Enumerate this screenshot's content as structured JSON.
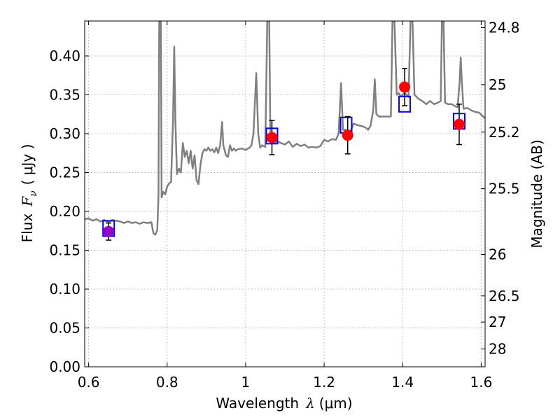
{
  "chart_data": {
    "type": "line",
    "xlabel": "Wavelength",
    "xlabel_symbol": "λ",
    "xlabel_unit": "(μm)",
    "ylabel": "Flux",
    "ylabel_symbol": "F",
    "ylabel_subscript": "ν",
    "ylabel_unit": "( μJy )",
    "y2label": "Magnitude (AB)",
    "xlim": [
      0.59,
      1.61
    ],
    "ylim": [
      0.0,
      0.445
    ],
    "grid": true,
    "x_ticks": [
      0.6,
      0.8,
      1.0,
      1.2,
      1.4,
      1.6
    ],
    "x_tick_labels": [
      "0.6",
      "0.8",
      "1",
      "1.2",
      "1.4",
      "1.6"
    ],
    "y_ticks": [
      0.0,
      0.05,
      0.1,
      0.15,
      0.2,
      0.25,
      0.3,
      0.35,
      0.4
    ],
    "y_tick_labels": [
      "0.00",
      "0.05",
      "0.10",
      "0.15",
      "0.20",
      "0.25",
      "0.30",
      "0.35",
      "0.40"
    ],
    "y2_ticks": [
      {
        "label": "24.8",
        "mag": 24.8
      },
      {
        "label": "25",
        "mag": 25.0
      },
      {
        "label": "25.2",
        "mag": 25.2
      },
      {
        "label": "25.5",
        "mag": 25.5
      },
      {
        "label": "26",
        "mag": 26.0
      },
      {
        "label": "26.5",
        "mag": 26.5
      },
      {
        "label": "27",
        "mag": 27.0
      },
      {
        "label": "28",
        "mag": 28.0
      }
    ],
    "colors": {
      "spectrum": "#808080",
      "observed": "#ff0000",
      "observed_first": "#9400c8",
      "model": "#0000ff",
      "errorbar": "#000000",
      "grid": "#b0b0b0"
    },
    "spectrum": [
      [
        0.59,
        0.19
      ],
      [
        0.6,
        0.191
      ],
      [
        0.61,
        0.188
      ],
      [
        0.62,
        0.19
      ],
      [
        0.63,
        0.187
      ],
      [
        0.64,
        0.189
      ],
      [
        0.65,
        0.186
      ],
      [
        0.66,
        0.189
      ],
      [
        0.67,
        0.188
      ],
      [
        0.68,
        0.187
      ],
      [
        0.69,
        0.185
      ],
      [
        0.7,
        0.187
      ],
      [
        0.71,
        0.185
      ],
      [
        0.72,
        0.186
      ],
      [
        0.73,
        0.184
      ],
      [
        0.74,
        0.186
      ],
      [
        0.75,
        0.185
      ],
      [
        0.76,
        0.186
      ],
      [
        0.765,
        0.172
      ],
      [
        0.77,
        0.17
      ],
      [
        0.775,
        0.176
      ],
      [
        0.778,
        0.22
      ],
      [
        0.78,
        0.445
      ],
      [
        0.784,
        0.445
      ],
      [
        0.786,
        0.218
      ],
      [
        0.79,
        0.225
      ],
      [
        0.795,
        0.222
      ],
      [
        0.8,
        0.232
      ],
      [
        0.805,
        0.236
      ],
      [
        0.81,
        0.238
      ],
      [
        0.815,
        0.318
      ],
      [
        0.818,
        0.412
      ],
      [
        0.821,
        0.318
      ],
      [
        0.825,
        0.248
      ],
      [
        0.83,
        0.255
      ],
      [
        0.835,
        0.25
      ],
      [
        0.84,
        0.288
      ],
      [
        0.845,
        0.27
      ],
      [
        0.85,
        0.278
      ],
      [
        0.855,
        0.262
      ],
      [
        0.86,
        0.278
      ],
      [
        0.865,
        0.255
      ],
      [
        0.87,
        0.272
      ],
      [
        0.875,
        0.24
      ],
      [
        0.88,
        0.235
      ],
      [
        0.885,
        0.26
      ],
      [
        0.89,
        0.275
      ],
      [
        0.895,
        0.28
      ],
      [
        0.9,
        0.278
      ],
      [
        0.905,
        0.282
      ],
      [
        0.91,
        0.278
      ],
      [
        0.915,
        0.28
      ],
      [
        0.92,
        0.276
      ],
      [
        0.925,
        0.282
      ],
      [
        0.93,
        0.275
      ],
      [
        0.935,
        0.285
      ],
      [
        0.94,
        0.315
      ],
      [
        0.943,
        0.285
      ],
      [
        0.95,
        0.272
      ],
      [
        0.955,
        0.27
      ],
      [
        0.96,
        0.285
      ],
      [
        0.965,
        0.278
      ],
      [
        0.97,
        0.281
      ],
      [
        0.975,
        0.278
      ],
      [
        0.98,
        0.28
      ],
      [
        0.99,
        0.281
      ],
      [
        1.0,
        0.279
      ],
      [
        1.01,
        0.282
      ],
      [
        1.015,
        0.285
      ],
      [
        1.02,
        0.3
      ],
      [
        1.027,
        0.378
      ],
      [
        1.032,
        0.3
      ],
      [
        1.037,
        0.282
      ],
      [
        1.042,
        0.285
      ],
      [
        1.05,
        0.283
      ],
      [
        1.055,
        0.445
      ],
      [
        1.06,
        0.445
      ],
      [
        1.063,
        0.292
      ],
      [
        1.07,
        0.288
      ],
      [
        1.08,
        0.29
      ],
      [
        1.09,
        0.288
      ],
      [
        1.1,
        0.286
      ],
      [
        1.11,
        0.29
      ],
      [
        1.12,
        0.283
      ],
      [
        1.13,
        0.287
      ],
      [
        1.14,
        0.284
      ],
      [
        1.15,
        0.286
      ],
      [
        1.16,
        0.282
      ],
      [
        1.17,
        0.283
      ],
      [
        1.18,
        0.282
      ],
      [
        1.19,
        0.284
      ],
      [
        1.2,
        0.292
      ],
      [
        1.21,
        0.29
      ],
      [
        1.22,
        0.293
      ],
      [
        1.23,
        0.292
      ],
      [
        1.237,
        0.3
      ],
      [
        1.243,
        0.365
      ],
      [
        1.248,
        0.305
      ],
      [
        1.255,
        0.305
      ],
      [
        1.265,
        0.3
      ],
      [
        1.275,
        0.313
      ],
      [
        1.285,
        0.311
      ],
      [
        1.295,
        0.31
      ],
      [
        1.305,
        0.308
      ],
      [
        1.312,
        0.305
      ],
      [
        1.318,
        0.31
      ],
      [
        1.325,
        0.33
      ],
      [
        1.329,
        0.37
      ],
      [
        1.333,
        0.325
      ],
      [
        1.34,
        0.322
      ],
      [
        1.35,
        0.322
      ],
      [
        1.36,
        0.322
      ],
      [
        1.37,
        0.322
      ],
      [
        1.374,
        0.445
      ],
      [
        1.379,
        0.445
      ],
      [
        1.385,
        0.35
      ],
      [
        1.39,
        0.352
      ],
      [
        1.395,
        0.348
      ],
      [
        1.4,
        0.35
      ],
      [
        1.405,
        0.352
      ],
      [
        1.41,
        0.35
      ],
      [
        1.415,
        0.347
      ],
      [
        1.42,
        0.445
      ],
      [
        1.425,
        0.445
      ],
      [
        1.43,
        0.35
      ],
      [
        1.44,
        0.345
      ],
      [
        1.45,
        0.342
      ],
      [
        1.46,
        0.338
      ],
      [
        1.47,
        0.342
      ],
      [
        1.48,
        0.338
      ],
      [
        1.49,
        0.34
      ],
      [
        1.497,
        0.342
      ],
      [
        1.5,
        0.445
      ],
      [
        1.504,
        0.445
      ],
      [
        1.508,
        0.34
      ],
      [
        1.515,
        0.338
      ],
      [
        1.525,
        0.338
      ],
      [
        1.535,
        0.335
      ],
      [
        1.54,
        0.334
      ],
      [
        1.545,
        0.365
      ],
      [
        1.548,
        0.398
      ],
      [
        1.551,
        0.365
      ],
      [
        1.555,
        0.332
      ],
      [
        1.565,
        0.333
      ],
      [
        1.575,
        0.33
      ],
      [
        1.585,
        0.328
      ],
      [
        1.595,
        0.327
      ],
      [
        1.605,
        0.322
      ],
      [
        1.61,
        0.32
      ]
    ],
    "observed_points": [
      {
        "x": 0.651,
        "y": 0.174,
        "yerr_low": 0.011,
        "yerr_high": 0.011
      },
      {
        "x": 1.067,
        "y": 0.295,
        "yerr_low": 0.022,
        "yerr_high": 0.022
      },
      {
        "x": 1.26,
        "y": 0.298,
        "yerr_low": 0.024,
        "yerr_high": 0.024
      },
      {
        "x": 1.405,
        "y": 0.36,
        "yerr_low": 0.024,
        "yerr_high": 0.024
      },
      {
        "x": 1.544,
        "y": 0.312,
        "yerr_low": 0.026,
        "yerr_high": 0.026
      }
    ],
    "model_points": [
      {
        "x": 0.651,
        "y": 0.178
      },
      {
        "x": 1.067,
        "y": 0.297
      },
      {
        "x": 1.256,
        "y": 0.311
      },
      {
        "x": 1.405,
        "y": 0.338
      },
      {
        "x": 1.544,
        "y": 0.316
      }
    ]
  }
}
